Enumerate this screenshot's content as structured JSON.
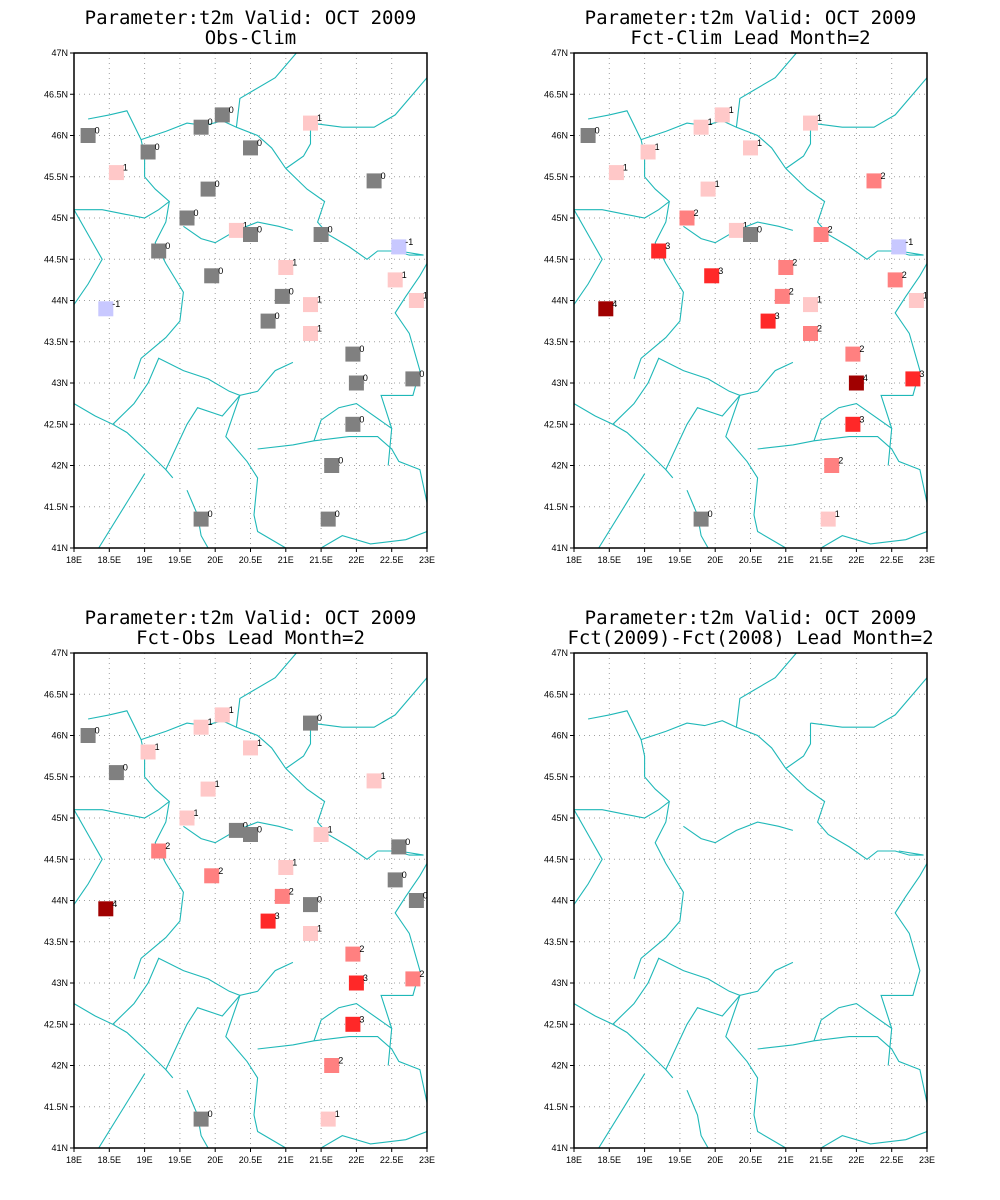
{
  "figure": {
    "background": "#ffffff",
    "frame_color": "#000000",
    "grid_color": "#a0a0a0",
    "coast_color": "#1fb8b8"
  },
  "color_scale": {
    "-1": "#c8c8ff",
    "0": "#808080",
    "1": "#ffc8c8",
    "2": "#ff8080",
    "3": "#ff2828",
    "4": "#a00000"
  },
  "stations": [
    [
      18.2,
      46.0
    ],
    [
      19.8,
      46.1
    ],
    [
      20.1,
      46.25
    ],
    [
      20.5,
      45.85
    ],
    [
      19.05,
      45.8
    ],
    [
      18.6,
      45.55
    ],
    [
      19.9,
      45.35
    ],
    [
      19.6,
      45.0
    ],
    [
      20.3,
      44.85
    ],
    [
      20.5,
      44.8
    ],
    [
      19.2,
      44.6
    ],
    [
      19.95,
      44.3
    ],
    [
      21.0,
      44.4
    ],
    [
      21.5,
      44.8
    ],
    [
      21.35,
      46.15
    ],
    [
      22.25,
      45.45
    ],
    [
      22.6,
      44.65
    ],
    [
      18.45,
      43.9
    ],
    [
      20.95,
      44.05
    ],
    [
      21.35,
      43.95
    ],
    [
      20.75,
      43.75
    ],
    [
      21.35,
      43.6
    ],
    [
      21.95,
      43.35
    ],
    [
      22.55,
      44.25
    ],
    [
      22.85,
      44.0
    ],
    [
      22.0,
      43.0
    ],
    [
      22.8,
      43.05
    ],
    [
      21.95,
      42.5
    ],
    [
      21.65,
      42.0
    ],
    [
      19.8,
      41.35
    ],
    [
      21.6,
      41.35
    ]
  ],
  "chart_data": [
    {
      "type": "scatter",
      "title": "Parameter:t2m Valid: OCT 2009",
      "subtitle": "Obs-Clim",
      "xlim": [
        18,
        23
      ],
      "ylim": [
        41,
        47
      ],
      "xticks": [
        "18E",
        "18.5E",
        "19E",
        "19.5E",
        "20E",
        "20.5E",
        "21E",
        "21.5E",
        "22E",
        "22.5E",
        "23E"
      ],
      "yticks": [
        "41N",
        "41.5N",
        "42N",
        "42.5N",
        "43N",
        "43.5N",
        "44N",
        "44.5N",
        "45N",
        "45.5N",
        "46N",
        "46.5N",
        "47N"
      ],
      "grid": true,
      "values": [
        0,
        0,
        0,
        0,
        0,
        1,
        0,
        0,
        1,
        0,
        0,
        0,
        1,
        0,
        1,
        0,
        -1,
        -1,
        0,
        1,
        0,
        1,
        0,
        1,
        1,
        0,
        0,
        0,
        0,
        0,
        0
      ]
    },
    {
      "type": "scatter",
      "title": "Parameter:t2m Valid: OCT 2009",
      "subtitle": "Fct-Clim Lead Month=2",
      "xlim": [
        18,
        23
      ],
      "ylim": [
        41,
        47
      ],
      "xticks": [
        "18E",
        "18.5E",
        "19E",
        "19.5E",
        "20E",
        "20.5E",
        "21E",
        "21.5E",
        "22E",
        "22.5E",
        "23E"
      ],
      "yticks": [
        "41N",
        "41.5N",
        "42N",
        "42.5N",
        "43N",
        "43.5N",
        "44N",
        "44.5N",
        "45N",
        "45.5N",
        "46N",
        "46.5N",
        "47N"
      ],
      "grid": true,
      "values": [
        0,
        1,
        1,
        1,
        1,
        1,
        1,
        2,
        1,
        0,
        3,
        3,
        2,
        2,
        1,
        2,
        -1,
        4,
        2,
        1,
        3,
        2,
        2,
        2,
        1,
        4,
        3,
        3,
        2,
        0,
        1
      ]
    },
    {
      "type": "scatter",
      "title": "Parameter:t2m Valid: OCT 2009",
      "subtitle": "Fct-Obs Lead Month=2",
      "xlim": [
        18,
        23
      ],
      "ylim": [
        41,
        47
      ],
      "xticks": [
        "18E",
        "18.5E",
        "19E",
        "19.5E",
        "20E",
        "20.5E",
        "21E",
        "21.5E",
        "22E",
        "22.5E",
        "23E"
      ],
      "yticks": [
        "41N",
        "41.5N",
        "42N",
        "42.5N",
        "43N",
        "43.5N",
        "44N",
        "44.5N",
        "45N",
        "45.5N",
        "46N",
        "46.5N",
        "47N"
      ],
      "grid": true,
      "values": [
        0,
        1,
        1,
        1,
        1,
        0,
        1,
        1,
        0,
        0,
        2,
        2,
        1,
        1,
        0,
        1,
        0,
        4,
        2,
        0,
        3,
        1,
        2,
        0,
        0,
        3,
        2,
        3,
        2,
        0,
        1
      ]
    },
    {
      "type": "scatter",
      "title": "Parameter:t2m Valid: OCT 2009",
      "subtitle": "Fct(2009)-Fct(2008) Lead Month=2",
      "xlim": [
        18,
        23
      ],
      "ylim": [
        41,
        47
      ],
      "xticks": [
        "18E",
        "18.5E",
        "19E",
        "19.5E",
        "20E",
        "20.5E",
        "21E",
        "21.5E",
        "22E",
        "22.5E",
        "23E"
      ],
      "yticks": [
        "41N",
        "41.5N",
        "42N",
        "42.5N",
        "43N",
        "43.5N",
        "44N",
        "44.5N",
        "45N",
        "45.5N",
        "46N",
        "46.5N",
        "47N"
      ],
      "grid": true,
      "values": []
    }
  ]
}
